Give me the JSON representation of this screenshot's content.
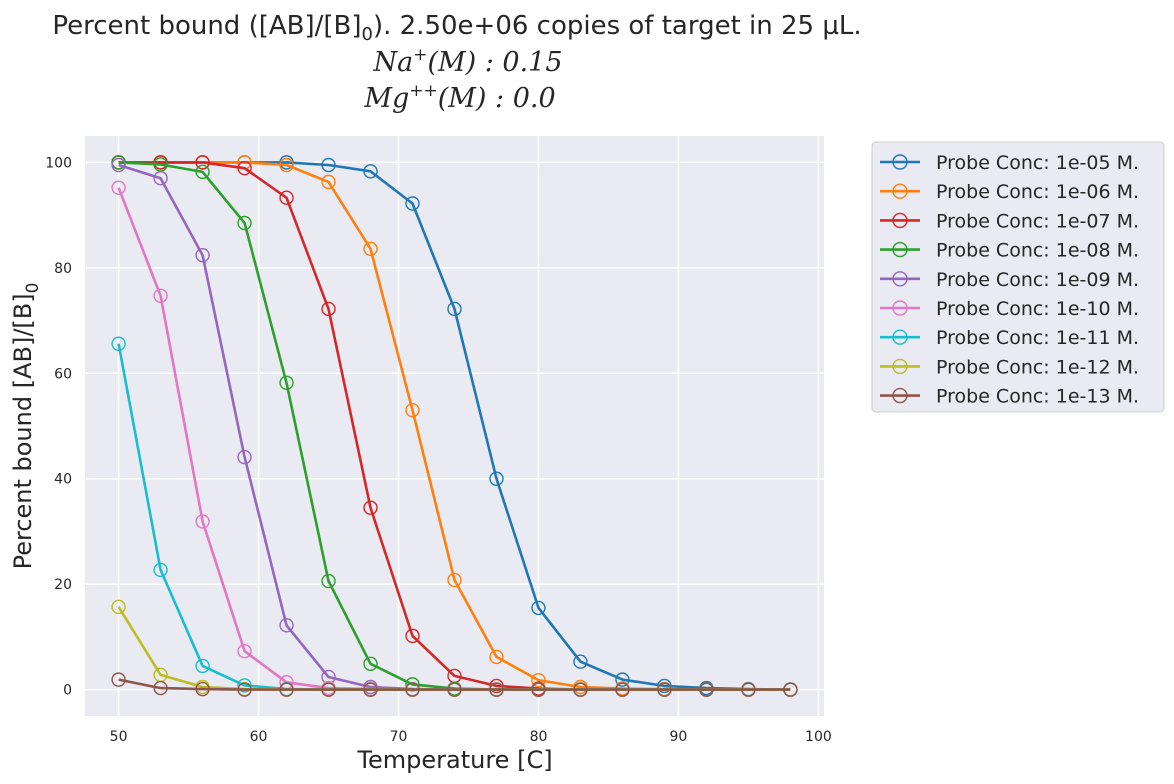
{
  "chart_data": {
    "type": "line",
    "title_line1_prefix": "Percent bound ([AB]/[B]",
    "title_line1_sub": "0",
    "title_line1_suffix": "). 2.50e+06 copies of target in 25 µL.",
    "title_line2": "Na",
    "title_line2_sup": "+",
    "title_line2_rest": "(M) : 0.15",
    "title_line3": "Mg",
    "title_line3_sup": "++",
    "title_line3_rest": "(M) : 0.0",
    "xlabel": "Temperature [C]",
    "ylabel_prefix": "Percent bound [AB]/[B]",
    "ylabel_sub": "0",
    "xlim": [
      47.6,
      100.4
    ],
    "ylim": [
      -5,
      105
    ],
    "xticks": [
      50,
      60,
      70,
      80,
      90,
      100
    ],
    "yticks": [
      0,
      20,
      40,
      60,
      80,
      100
    ],
    "grid": true,
    "legend_position": "outside-top-right",
    "x": [
      50,
      53,
      56,
      59,
      62,
      65,
      68,
      71,
      74,
      77,
      80,
      83,
      86,
      89,
      92,
      95,
      98
    ],
    "series": [
      {
        "name": "Probe Conc: 1e-05 M.",
        "color": "#1f77b4",
        "values": [
          100,
          100,
          100,
          100,
          100,
          99.5,
          98.3,
          92.2,
          72.2,
          40.0,
          15.5,
          5.3,
          1.9,
          0.7,
          0.3,
          0.1,
          0.0
        ]
      },
      {
        "name": "Probe Conc: 1e-06 M.",
        "color": "#ff7f0e",
        "values": [
          100,
          100,
          100,
          100,
          99.5,
          96.3,
          83.6,
          53.0,
          20.8,
          6.2,
          1.8,
          0.5,
          0.2,
          0.1,
          0.0,
          0.0,
          0.0
        ]
      },
      {
        "name": "Probe Conc: 1e-07 M.",
        "color": "#d62728",
        "values": [
          100,
          100,
          100,
          98.9,
          93.3,
          72.2,
          34.5,
          10.2,
          2.6,
          0.7,
          0.2,
          0.0,
          0.0,
          0.0,
          0.0,
          0.0,
          0.0
        ]
      },
      {
        "name": "Probe Conc: 1e-08 M.",
        "color": "#2ca02c",
        "values": [
          100,
          99.6,
          98.2,
          88.5,
          58.2,
          20.6,
          4.9,
          1.0,
          0.2,
          0.0,
          0.0,
          0.0,
          0.0,
          0.0,
          0.0,
          0.0,
          0.0
        ]
      },
      {
        "name": "Probe Conc: 1e-09 M.",
        "color": "#9467bd",
        "values": [
          99.5,
          97.0,
          82.4,
          44.1,
          12.2,
          2.4,
          0.5,
          0.1,
          0.0,
          0.0,
          0.0,
          0.0,
          0.0,
          0.0,
          0.0,
          0.0,
          0.0
        ]
      },
      {
        "name": "Probe Conc: 1e-10 M.",
        "color": "#e377c2",
        "values": [
          95.2,
          74.7,
          31.9,
          7.3,
          1.4,
          0.3,
          0.1,
          0.0,
          0.0,
          0.0,
          0.0,
          0.0,
          0.0,
          0.0,
          0.0,
          0.0,
          0.0
        ]
      },
      {
        "name": "Probe Conc: 1e-11 M.",
        "color": "#17becf",
        "values": [
          65.6,
          22.7,
          4.5,
          0.8,
          0.1,
          0.0,
          0.0,
          0.0,
          0.0,
          0.0,
          0.0,
          0.0,
          0.0,
          0.0,
          0.0,
          0.0,
          0.0
        ]
      },
      {
        "name": "Probe Conc: 1e-12 M.",
        "color": "#bcbd22",
        "values": [
          15.7,
          2.8,
          0.5,
          0.1,
          0.0,
          0.0,
          0.0,
          0.0,
          0.0,
          0.0,
          0.0,
          0.0,
          0.0,
          0.0,
          0.0,
          0.0,
          0.0
        ]
      },
      {
        "name": "Probe Conc: 1e-13 M.",
        "color": "#8c564b",
        "values": [
          1.9,
          0.3,
          0.1,
          0.0,
          0.0,
          0.0,
          0.0,
          0.0,
          0.0,
          0.0,
          0.0,
          0.0,
          0.0,
          0.0,
          0.0,
          0.0,
          0.0
        ]
      }
    ]
  }
}
